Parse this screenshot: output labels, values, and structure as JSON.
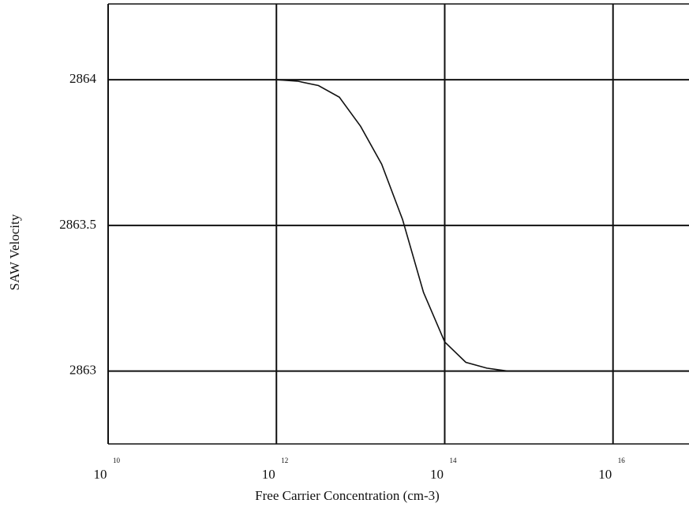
{
  "chart_data": {
    "type": "line",
    "xlabel": "Free Carrier Concentration (cm-3)",
    "ylabel": "SAW Velocity",
    "xscale": "log",
    "xlim": [
      10000000000.0,
      8e+16
    ],
    "ylim": [
      2862.75,
      2864.26
    ],
    "xticks": [
      {
        "value": 10000000000.0,
        "label": "10",
        "exponent": "10"
      },
      {
        "value": 1000000000000.0,
        "label": "10",
        "exponent": "12"
      },
      {
        "value": 100000000000000.0,
        "label": "10",
        "exponent": "14"
      },
      {
        "value": 1e+16,
        "label": "10",
        "exponent": "16"
      }
    ],
    "yticks": [
      2863,
      2863.5,
      2864
    ],
    "grid": true,
    "series": [
      {
        "color": "#111111",
        "x": [
          1000000000000.0,
          1780000000000.0,
          3160000000000.0,
          5600000000000.0,
          10000000000000.0,
          17800000000000.0,
          31600000000000.0,
          56000000000000.0,
          100000000000000.0,
          178000000000000.0,
          316000000000000.0,
          560000000000000.0,
          1000000000000000.0,
          1e+16,
          8e+16
        ],
        "values": [
          2864.0,
          2863.995,
          2863.98,
          2863.94,
          2863.84,
          2863.71,
          2863.52,
          2863.27,
          2863.1,
          2863.03,
          2863.01,
          2863.0,
          2863.0,
          2863.0,
          2863.0
        ]
      }
    ]
  }
}
